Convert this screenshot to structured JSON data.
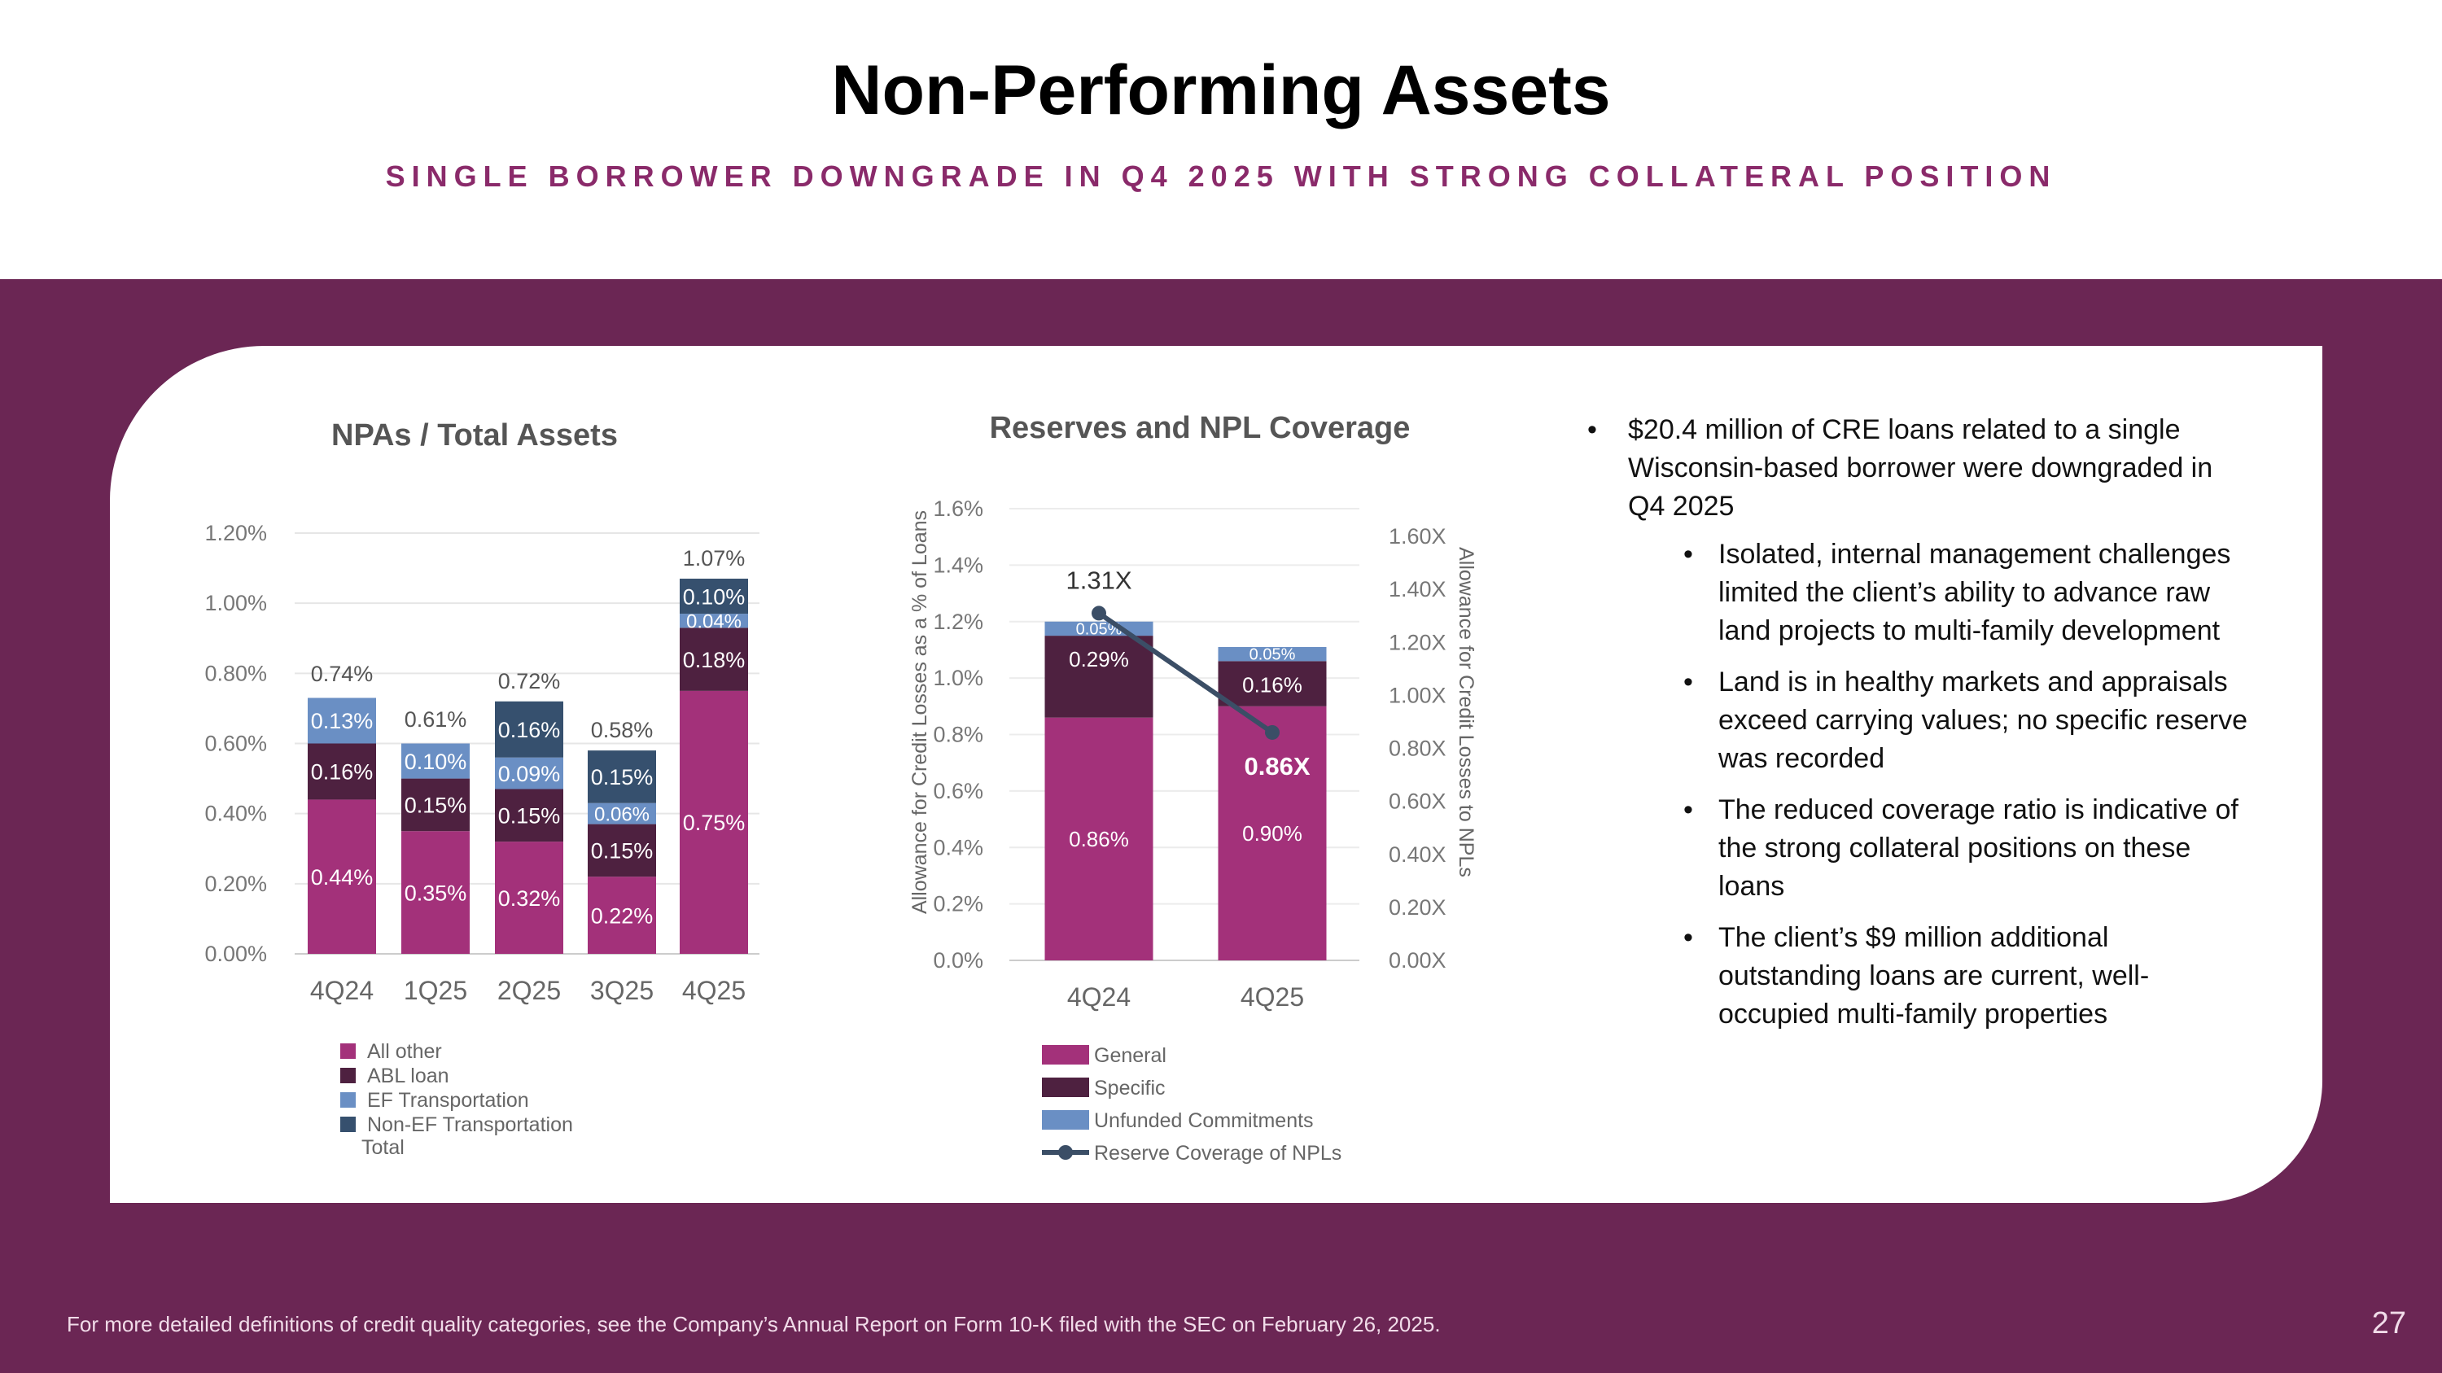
{
  "title": "Non-Performing Assets",
  "subtitle": "SINGLE BORROWER DOWNGRADE IN Q4 2025 WITH STRONG COLLATERAL POSITION",
  "footer": "For more detailed definitions of credit quality categories, see the Company’s Annual Report on Form 10-K filed with the SEC on February 26, 2025.",
  "page_number": "27",
  "colors": {
    "band": "#6b2654",
    "all_other": "#a3317a",
    "abl": "#4e2140",
    "ef": "#6a8fc4",
    "nonef": "#36506e",
    "line": "#3b4e66",
    "subtitle": "#8a2a6a"
  },
  "bullets": {
    "main": "$20.4 million of CRE loans related to a single Wisconsin-based borrower were downgraded in Q4 2025",
    "subs": [
      "Isolated, internal management challenges limited the client’s ability to advance raw land projects to multi-family development",
      "Land is in healthy markets and appraisals exceed carrying values; no specific reserve was recorded",
      "The reduced coverage ratio is indicative of the strong collateral positions on these loans",
      "The client’s $9 million additional outstanding loans are current, well-occupied multi-family properties"
    ]
  },
  "chart_data": [
    {
      "type": "bar",
      "stacked": true,
      "title": "NPAs / Total Assets",
      "categories": [
        "4Q24",
        "1Q25",
        "2Q25",
        "3Q25",
        "4Q25"
      ],
      "series": [
        {
          "name": "All other",
          "values": [
            0.44,
            0.35,
            0.32,
            0.22,
            0.75
          ],
          "labels": [
            "0.44%",
            "0.35%",
            "0.32%",
            "0.22%",
            "0.75%"
          ]
        },
        {
          "name": "ABL loan",
          "values": [
            0.16,
            0.15,
            0.15,
            0.15,
            0.18
          ],
          "labels": [
            "0.16%",
            "0.15%",
            "0.15%",
            "0.15%",
            "0.18%"
          ]
        },
        {
          "name": "EF Transportation",
          "values": [
            0.13,
            0.1,
            0.09,
            0.06,
            0.04
          ],
          "labels": [
            "0.13%",
            "0.10%",
            "0.09%",
            "0.06%",
            "0.04%"
          ]
        },
        {
          "name": "Non-EF Transportation",
          "values": [
            0,
            0,
            0.16,
            0.15,
            0.1
          ],
          "labels": [
            "",
            "",
            "0.16%",
            "0.15%",
            "0.10%"
          ]
        }
      ],
      "totals_series_name": "Total",
      "totals": [
        0.74,
        0.61,
        0.72,
        0.58,
        1.07
      ],
      "total_labels": [
        "0.74%",
        "0.61%",
        "0.72%",
        "0.58%",
        "1.07%"
      ],
      "ylim": [
        0,
        1.2
      ],
      "y_ticks": [
        "0.00%",
        "0.20%",
        "0.40%",
        "0.60%",
        "0.80%",
        "1.00%",
        "1.20%"
      ],
      "grid": true,
      "legend_position": "bottom"
    },
    {
      "type": "bar",
      "stacked": true,
      "title": "Reserves and NPL Coverage",
      "categories": [
        "4Q24",
        "4Q25"
      ],
      "series": [
        {
          "name": "General",
          "values": [
            0.86,
            0.9
          ],
          "labels": [
            "0.86%",
            "0.90%"
          ]
        },
        {
          "name": "Specific",
          "values": [
            0.29,
            0.16
          ],
          "labels": [
            "0.29%",
            "0.16%"
          ]
        },
        {
          "name": "Unfunded Commitments",
          "values": [
            0.05,
            0.05
          ],
          "labels": [
            "0.05%",
            "0.05%"
          ]
        }
      ],
      "line_series": {
        "name": "Reserve Coverage of NPLs",
        "values": [
          1.31,
          0.86
        ],
        "labels": [
          "1.31X",
          "0.86X"
        ],
        "axis": "right"
      },
      "ylabel": "Allowance for Credit Losses as a % of Loans",
      "y2label": "Allowance for Credit Losses to NPLs",
      "ylim": [
        0,
        1.6
      ],
      "y2lim": [
        0,
        1.6
      ],
      "y_ticks": [
        "0.0%",
        "0.2%",
        "0.4%",
        "0.6%",
        "0.8%",
        "1.0%",
        "1.2%",
        "1.4%",
        "1.6%"
      ],
      "y2_ticks": [
        "0.00X",
        "0.20X",
        "0.40X",
        "0.60X",
        "0.80X",
        "1.00X",
        "1.20X",
        "1.40X",
        "1.60X"
      ],
      "grid": true,
      "legend_position": "bottom"
    }
  ]
}
